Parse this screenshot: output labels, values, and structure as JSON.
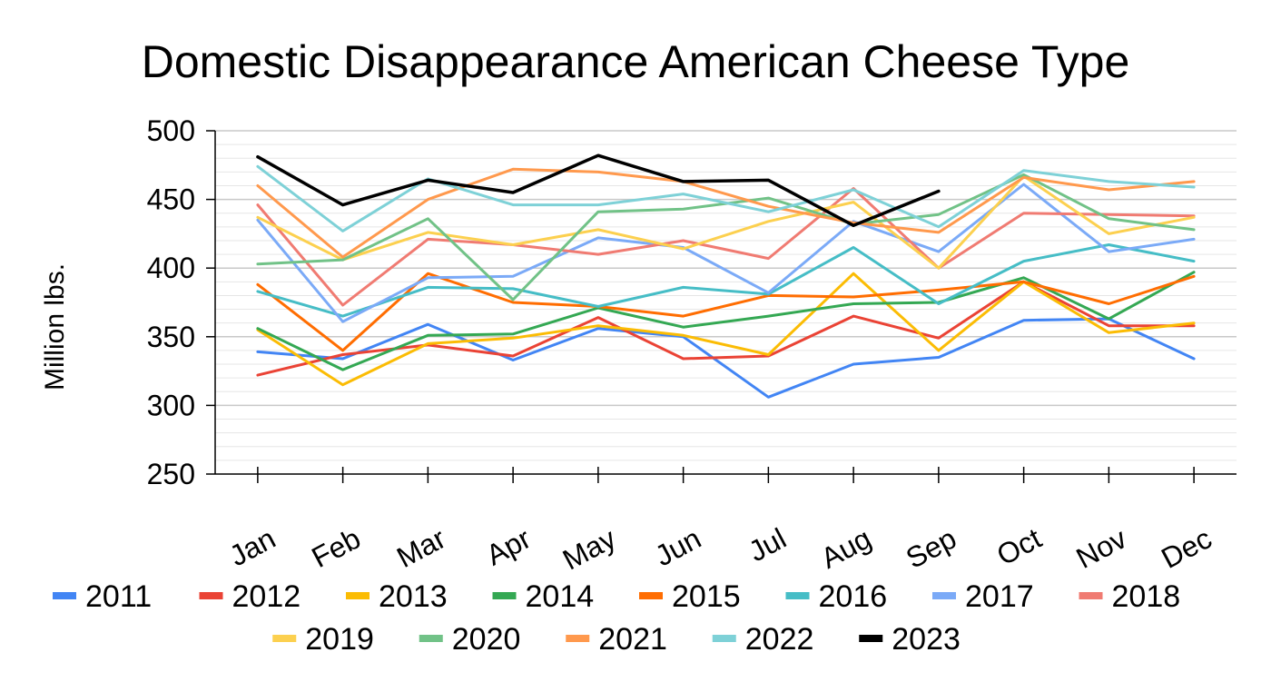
{
  "chart_data": {
    "type": "line",
    "title": "Domestic Disappearance American Cheese Type",
    "ylabel": "Million lbs.",
    "xlabel": "",
    "ylim": [
      250,
      500
    ],
    "y_ticks": [
      "500",
      "450",
      "400",
      "350",
      "300",
      "250"
    ],
    "categories": [
      "Jan",
      "Feb",
      "Mar",
      "Apr",
      "May",
      "Jun",
      "Jul",
      "Aug",
      "Sep",
      "Oct",
      "Nov",
      "Dec"
    ],
    "grid": true,
    "legend_position": "bottom",
    "series": [
      {
        "name": "2011",
        "color": "#4285f4",
        "values": [
          339,
          334,
          359,
          333,
          356,
          350,
          306,
          330,
          335,
          362,
          363,
          334
        ]
      },
      {
        "name": "2012",
        "color": "#ea4335",
        "values": [
          322,
          337,
          344,
          336,
          364,
          334,
          336,
          365,
          349,
          390,
          358,
          358
        ]
      },
      {
        "name": "2013",
        "color": "#fbbc04",
        "values": [
          355,
          315,
          345,
          349,
          358,
          351,
          337,
          396,
          340,
          390,
          353,
          360
        ]
      },
      {
        "name": "2014",
        "color": "#34a853",
        "values": [
          356,
          326,
          351,
          352,
          371,
          357,
          365,
          374,
          375,
          393,
          363,
          397
        ]
      },
      {
        "name": "2015",
        "color": "#ff6d01",
        "values": [
          388,
          340,
          396,
          375,
          372,
          365,
          380,
          379,
          384,
          390,
          374,
          394
        ]
      },
      {
        "name": "2016",
        "color": "#46bdc6",
        "values": [
          383,
          365,
          386,
          385,
          372,
          386,
          381,
          415,
          374,
          405,
          417,
          405
        ]
      },
      {
        "name": "2017",
        "color": "#7baaf7",
        "values": [
          435,
          361,
          393,
          394,
          422,
          415,
          382,
          434,
          412,
          461,
          412,
          421
        ]
      },
      {
        "name": "2018",
        "color": "#f07b72",
        "values": [
          446,
          373,
          421,
          417,
          410,
          420,
          407,
          458,
          400,
          440,
          439,
          438
        ]
      },
      {
        "name": "2019",
        "color": "#fcd04f",
        "values": [
          437,
          406,
          426,
          417,
          428,
          414,
          434,
          448,
          400,
          467,
          425,
          437
        ]
      },
      {
        "name": "2020",
        "color": "#71c287",
        "values": [
          403,
          406,
          436,
          377,
          441,
          443,
          451,
          432,
          439,
          468,
          436,
          428
        ]
      },
      {
        "name": "2021",
        "color": "#ff994d",
        "values": [
          460,
          408,
          450,
          472,
          470,
          463,
          445,
          433,
          426,
          466,
          457,
          463
        ]
      },
      {
        "name": "2022",
        "color": "#7ed1d7",
        "values": [
          474,
          427,
          465,
          446,
          446,
          454,
          441,
          457,
          430,
          471,
          463,
          459
        ]
      },
      {
        "name": "2023",
        "color": "#000000",
        "values": [
          481,
          446,
          464,
          455,
          482,
          463,
          464,
          431,
          456,
          null,
          null,
          null
        ]
      }
    ]
  }
}
